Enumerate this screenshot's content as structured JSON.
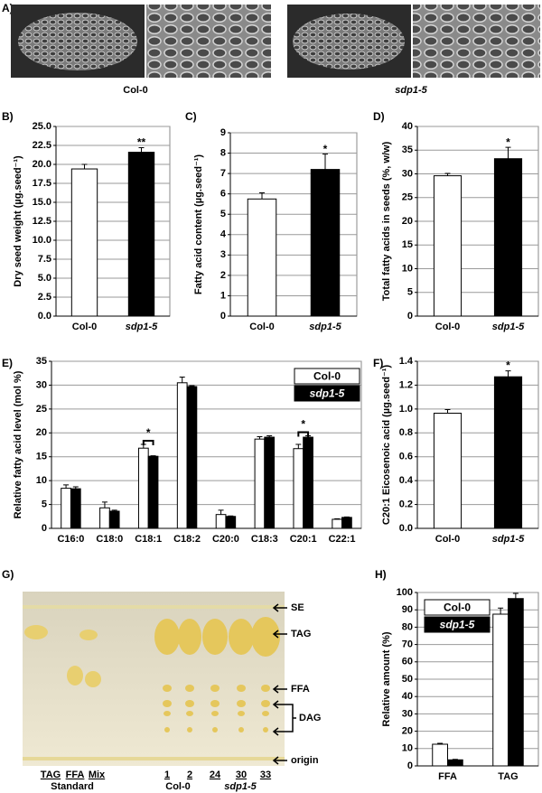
{
  "panel_a": {
    "label": "A)",
    "captions": [
      "Col-0",
      "sdp1-5"
    ]
  },
  "panel_g": {
    "label": "G)",
    "bands": [
      "SE",
      "TAG",
      "FFA",
      "DAG",
      "origin"
    ],
    "lanes": [
      "TAG",
      "FFA",
      "Mix",
      "1",
      "2",
      "24",
      "30",
      "33"
    ],
    "groups": [
      "Standard",
      "Col-0",
      "sdp1-5"
    ]
  },
  "chart_data": [
    {
      "type": "bar",
      "label": "B)",
      "ylabel": "Dry seed weight (µg.seed⁻¹)",
      "categories": [
        "Col-0",
        "sdp1-5"
      ],
      "values": [
        19.4,
        21.6
      ],
      "errors": [
        0.6,
        0.6
      ],
      "colors": [
        "#ffffff",
        "#000000"
      ],
      "significance": [
        null,
        "**"
      ],
      "ylim": [
        0,
        25
      ],
      "yticks": [
        {
          "value": 0,
          "label": "0.0"
        },
        2.5,
        {
          "value": 5,
          "label": "5.0"
        },
        7.5,
        {
          "value": 10,
          "label": "10.0"
        },
        12.5,
        {
          "value": 15,
          "label": "15.0"
        },
        17.5,
        {
          "value": 20,
          "label": "20.0"
        },
        22.5,
        {
          "value": 25,
          "label": "25.0"
        }
      ],
      "grid": true
    },
    {
      "type": "bar",
      "label": "C)",
      "ylabel": "Fatty acid content (µg.seed⁻¹)",
      "categories": [
        "Col-0",
        "sdp1-5"
      ],
      "values": [
        5.75,
        7.2
      ],
      "errors": [
        0.3,
        0.75
      ],
      "colors": [
        "#ffffff",
        "#000000"
      ],
      "significance": [
        null,
        "*"
      ],
      "ylim": [
        0,
        9
      ],
      "yticks": [
        0,
        1,
        2,
        3,
        4,
        5,
        6,
        7,
        8,
        9
      ],
      "grid": true
    },
    {
      "type": "bar",
      "label": "D)",
      "ylabel": "Total fatty acids in seeds (%, w/w)",
      "categories": [
        "Col-0",
        "sdp1-5"
      ],
      "values": [
        29.6,
        33.2
      ],
      "errors": [
        0.5,
        2.4
      ],
      "colors": [
        "#ffffff",
        "#000000"
      ],
      "significance": [
        null,
        "*"
      ],
      "ylim": [
        0,
        40
      ],
      "yticks": [
        0,
        5,
        10,
        15,
        20,
        25,
        30,
        35,
        40
      ],
      "grid": true
    },
    {
      "type": "grouped-bar",
      "label": "E)",
      "ylabel": "Relative fatty acid level (mol %)",
      "categories": [
        "C16:0",
        "C18:0",
        "C18:1",
        "C18:2",
        "C20:0",
        "C18:3",
        "C20:1",
        "C22:1"
      ],
      "series": [
        {
          "name": "Col-0",
          "color": "#ffffff",
          "values": [
            8.4,
            4.3,
            16.8,
            30.5,
            2.9,
            18.7,
            16.7,
            1.9
          ],
          "errors": [
            0.7,
            1.2,
            0.8,
            1.2,
            0.9,
            0.5,
            0.9,
            0.1
          ]
        },
        {
          "name": "sdp1-5",
          "color": "#000000",
          "values": [
            8.3,
            3.6,
            15.1,
            29.7,
            2.5,
            19.1,
            19.1,
            2.3
          ],
          "errors": [
            0.4,
            0.2,
            0.1,
            0.2,
            0.1,
            0.3,
            0.3,
            0.1
          ]
        }
      ],
      "significance": [
        null,
        null,
        "*",
        null,
        null,
        null,
        "*",
        null
      ],
      "legend": "upper right",
      "ylim": [
        0,
        35
      ],
      "yticks": [
        0,
        5,
        10,
        15,
        20,
        25,
        30,
        35
      ],
      "grid": true
    },
    {
      "type": "bar",
      "label": "F)",
      "ylabel": "C20:1 Eicosenoic acid (µg.seed⁻¹)",
      "categories": [
        "Col-0",
        "sdp1-5"
      ],
      "values": [
        0.965,
        1.27
      ],
      "errors": [
        0.03,
        0.05
      ],
      "colors": [
        "#ffffff",
        "#000000"
      ],
      "significance": [
        null,
        "*"
      ],
      "ylim": [
        0,
        1.4
      ],
      "yticks": [
        {
          "value": 0,
          "label": "0.0"
        },
        0.2,
        0.4,
        0.6,
        0.8,
        {
          "value": 1,
          "label": "1.0"
        },
        1.2,
        1.4
      ],
      "grid": true
    },
    {
      "type": "grouped-bar",
      "label": "H)",
      "ylabel": "Relative amount (%)",
      "categories": [
        "FFA",
        "TAG"
      ],
      "series": [
        {
          "name": "Col-0",
          "color": "#ffffff",
          "values": [
            12.5,
            87.5
          ],
          "errors": [
            0.5,
            3.5
          ]
        },
        {
          "name": "sdp1-5",
          "color": "#000000",
          "values": [
            3.5,
            96.5
          ],
          "errors": [
            0.3,
            3
          ]
        }
      ],
      "legend": "upper left",
      "ylim": [
        0,
        100
      ],
      "yticks": [
        0,
        10,
        20,
        30,
        40,
        50,
        60,
        70,
        80,
        90,
        100
      ],
      "grid": true
    }
  ]
}
